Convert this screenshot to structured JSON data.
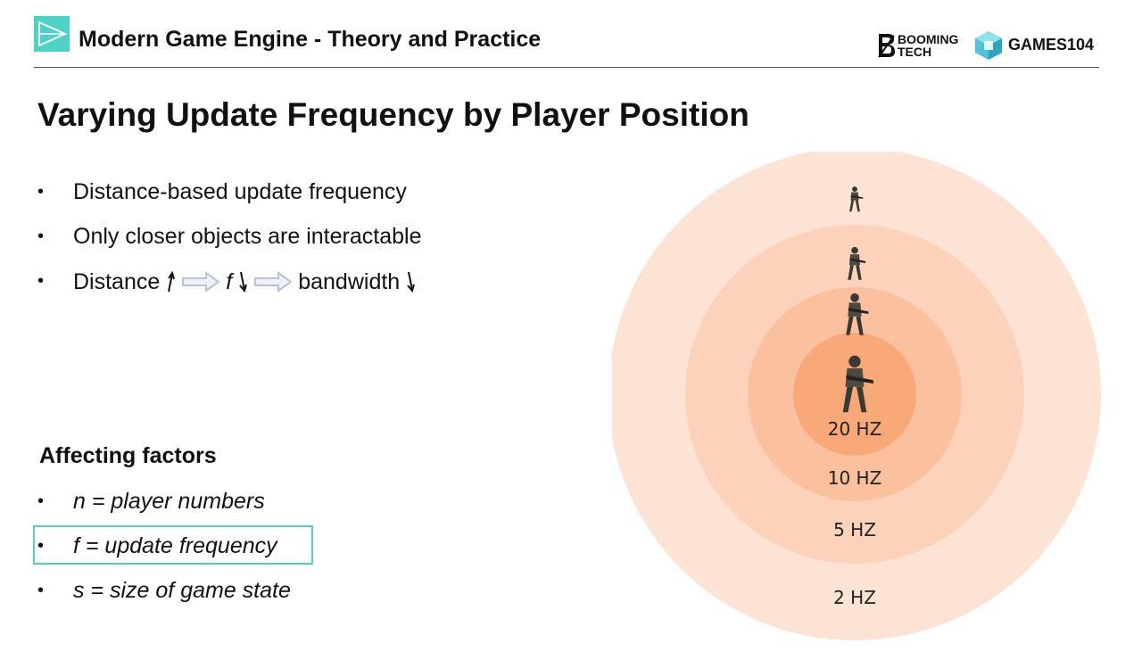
{
  "header": {
    "course_title": "Modern Game Engine - Theory and Practice",
    "brand_booming_line1": "BOOMING",
    "brand_booming_line2": "TECH",
    "brand_games": "GAMES104"
  },
  "slide": {
    "title": "Varying Update Frequency by Player Position",
    "bullets": [
      "Distance-based update frequency",
      "Only closer objects are interactable"
    ],
    "flow": {
      "distance": "Distance",
      "f": "f",
      "bandwidth": "bandwidth"
    },
    "factors_title": "Affecting factors",
    "factors": [
      "n = player numbers",
      "f = update frequency",
      "s = size of game state"
    ]
  },
  "diagram": {
    "rings": [
      {
        "label": "2 HZ",
        "color": "#fde3d4"
      },
      {
        "label": "5 HZ",
        "color": "#fcd3ba"
      },
      {
        "label": "10 HZ",
        "color": "#fbc09d"
      },
      {
        "label": "20 HZ",
        "color": "#f9a877"
      }
    ]
  },
  "colors": {
    "accent": "#4fd2c6",
    "arrow": "#b9c3d4"
  }
}
